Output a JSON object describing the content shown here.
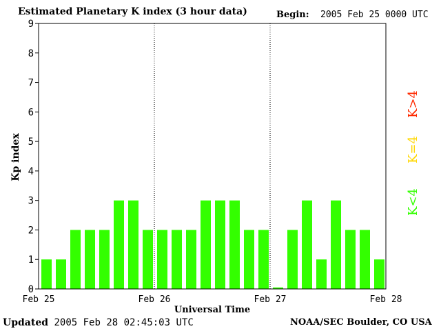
{
  "header": {
    "title": "Estimated Planetary K index (3 hour data)",
    "begin_label": "Begin:",
    "begin_value": "2005 Feb 25 0000 UTC"
  },
  "footer": {
    "updated_label": "Updated",
    "updated_value": "2005 Feb 28 02:45:03 UTC",
    "credit": "NOAA/SEC Boulder, CO USA"
  },
  "legend": [
    {
      "label": "K>4",
      "color": "#ff2a00"
    },
    {
      "label": "K=4",
      "color": "#ffd700"
    },
    {
      "label": "K<4",
      "color": "#33ff00"
    }
  ],
  "chart_data": {
    "type": "bar",
    "title": "Estimated Planetary K index (3 hour data)",
    "xlabel": "Universal Time",
    "ylabel": "Kp index",
    "ylim": [
      0,
      9
    ],
    "yticks": [
      0,
      1,
      2,
      3,
      4,
      5,
      6,
      7,
      8,
      9
    ],
    "xticks": [
      "Feb 25",
      "Feb 26",
      "Feb 27",
      "Feb 28"
    ],
    "interval_hours": 3,
    "values": [
      1,
      1,
      2,
      2,
      2,
      3,
      3,
      2,
      2,
      2,
      2,
      3,
      3,
      3,
      2,
      2,
      0.05,
      2,
      3,
      1,
      3,
      2,
      2,
      1
    ],
    "bar_color": "#33ff00",
    "grid": false
  }
}
